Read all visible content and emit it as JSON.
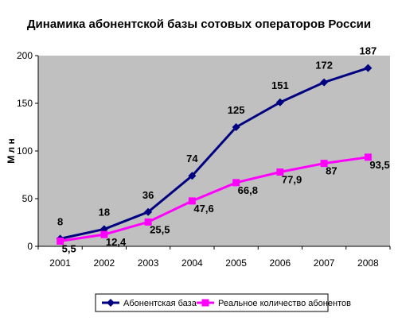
{
  "chart_data": {
    "type": "line",
    "title": "Динамика абонентской базы сотовых операторов России",
    "ylabel": "М л н",
    "xlabel": "",
    "categories": [
      "2001",
      "2002",
      "2003",
      "2004",
      "2005",
      "2006",
      "2007",
      "2008"
    ],
    "ylim": [
      0,
      200
    ],
    "yticks": [
      "0",
      "50",
      "100",
      "150",
      "200"
    ],
    "grid": false,
    "legend_position": "bottom",
    "series": [
      {
        "name": "Абонентская база",
        "color": "#000080",
        "marker": "diamond",
        "values": [
          8,
          18,
          36,
          74,
          125,
          151,
          172,
          187
        ],
        "labels": [
          "8",
          "18",
          "36",
          "74",
          "125",
          "151",
          "172",
          "187"
        ]
      },
      {
        "name": "Реальное количество абонентов",
        "color": "#ff00ff",
        "marker": "square",
        "values": [
          5.5,
          12.4,
          25.5,
          47.6,
          66.8,
          77.9,
          87,
          93.5
        ],
        "labels": [
          "5,5",
          "12,4",
          "25,5",
          "47,6",
          "66,8",
          "77,9",
          "87",
          "93,5"
        ]
      }
    ],
    "plot_background": "#c0c0c0"
  }
}
